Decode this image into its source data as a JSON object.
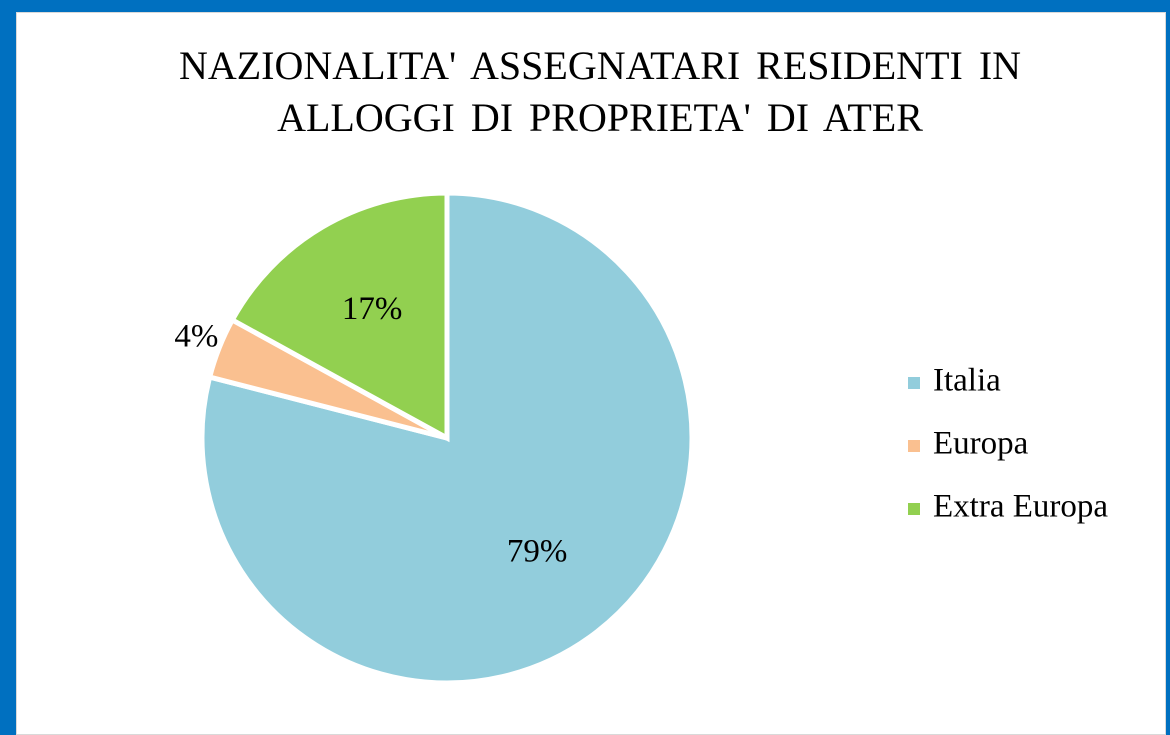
{
  "chart_data": {
    "type": "pie",
    "title": "NAZIONALITA' ASSEGNATARI RESIDENTI IN ALLOGGI DI PROPRIETA' DI ATER",
    "categories": [
      "Italia",
      "Europa",
      "Extra Europa"
    ],
    "values": [
      79,
      4,
      17
    ],
    "value_labels": [
      "79%",
      "4%",
      "17%"
    ],
    "colors": [
      "#92cddc",
      "#fac090",
      "#92d050"
    ],
    "legend": "right"
  }
}
